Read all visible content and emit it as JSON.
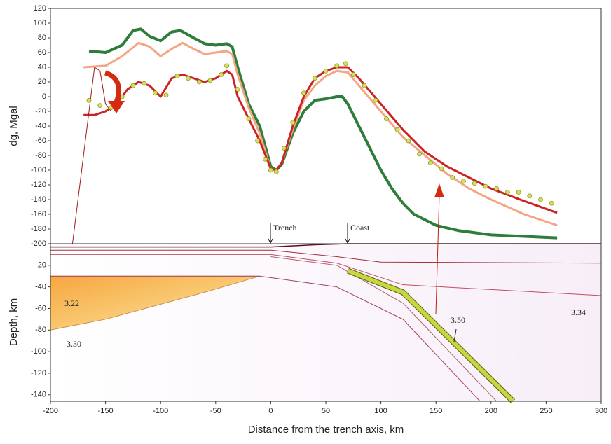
{
  "chart_data": [
    {
      "type": "line",
      "ylabel": "dg, Mgal",
      "xlim": [
        -200,
        300
      ],
      "ylim": [
        -200,
        120
      ],
      "yticks": [
        120,
        100,
        80,
        60,
        40,
        20,
        0,
        -20,
        -40,
        -60,
        -80,
        -100,
        -120,
        -140,
        -160,
        -180,
        -200
      ],
      "annotations": [
        {
          "text": "Trench"
        },
        {
          "text": "Coast"
        }
      ],
      "series": [
        {
          "color": "#2e7d3a",
          "width": 4,
          "x": [
            -165,
            -150,
            -135,
            -125,
            -118,
            -110,
            -100,
            -90,
            -82,
            -70,
            -60,
            -50,
            -40,
            -35,
            -30,
            -20,
            -10,
            0,
            5,
            10,
            20,
            30,
            40,
            50,
            60,
            65,
            70,
            80,
            90,
            100,
            110,
            120,
            130,
            150,
            170,
            200,
            230,
            260
          ],
          "values": [
            62,
            60,
            70,
            90,
            92,
            82,
            76,
            88,
            90,
            80,
            72,
            70,
            72,
            68,
            40,
            -10,
            -40,
            -95,
            -100,
            -92,
            -50,
            -20,
            -5,
            -3,
            0,
            0,
            -10,
            -40,
            -70,
            -100,
            -125,
            -145,
            -160,
            -175,
            -182,
            -188,
            -190,
            -192
          ]
        },
        {
          "color": "#f4a582",
          "width": 3,
          "x": [
            -170,
            -150,
            -135,
            -120,
            -110,
            -100,
            -90,
            -80,
            -70,
            -60,
            -50,
            -40,
            -35,
            -30,
            -20,
            -10,
            0,
            5,
            10,
            20,
            30,
            40,
            50,
            60,
            70,
            80,
            100,
            120,
            140,
            160,
            180,
            200,
            230,
            260
          ],
          "values": [
            40,
            42,
            55,
            73,
            68,
            55,
            65,
            73,
            65,
            58,
            60,
            62,
            58,
            30,
            -15,
            -50,
            -98,
            -100,
            -90,
            -45,
            -5,
            15,
            28,
            35,
            33,
            15,
            -20,
            -55,
            -80,
            -105,
            -125,
            -140,
            -160,
            -175
          ]
        },
        {
          "color": "#cc2222",
          "width": 3,
          "x": [
            -170,
            -160,
            -150,
            -140,
            -130,
            -120,
            -110,
            -100,
            -90,
            -80,
            -70,
            -60,
            -50,
            -40,
            -35,
            -30,
            -20,
            -10,
            0,
            5,
            10,
            20,
            30,
            40,
            50,
            60,
            70,
            80,
            100,
            120,
            140,
            160,
            180,
            200,
            230,
            260
          ],
          "values": [
            -25,
            -25,
            -20,
            -10,
            10,
            20,
            15,
            0,
            25,
            30,
            25,
            20,
            25,
            35,
            30,
            0,
            -30,
            -60,
            -98,
            -100,
            -90,
            -40,
            0,
            25,
            35,
            40,
            40,
            25,
            -10,
            -45,
            -75,
            -95,
            -110,
            -125,
            -142,
            -158
          ]
        },
        {
          "color": "#a01818",
          "width": 1,
          "x": [
            -180,
            -170,
            -160,
            -155,
            -150,
            -145
          ],
          "values": [
            -200,
            -80,
            40,
            35,
            -10,
            -20
          ]
        },
        {
          "color": "#d4e05a",
          "marker": true,
          "x": [
            -165,
            -155,
            -145,
            -135,
            -125,
            -115,
            -105,
            -95,
            -85,
            -75,
            -65,
            -55,
            -45,
            -40,
            -30,
            -20,
            -12,
            -5,
            0,
            5,
            12,
            20,
            30,
            40,
            50,
            60,
            68,
            75,
            85,
            95,
            105,
            115,
            125,
            135,
            145,
            155,
            165,
            175,
            185,
            195,
            205,
            215,
            225,
            235,
            245,
            255
          ],
          "values": [
            -5,
            -12,
            -15,
            0,
            15,
            18,
            5,
            2,
            28,
            25,
            20,
            22,
            30,
            42,
            10,
            -30,
            -60,
            -85,
            -100,
            -102,
            -70,
            -35,
            5,
            25,
            35,
            42,
            45,
            30,
            15,
            -5,
            -30,
            -45,
            -60,
            -78,
            -90,
            -98,
            -110,
            -115,
            -118,
            -122,
            -125,
            -130,
            -130,
            -135,
            -140,
            -145
          ]
        }
      ]
    },
    {
      "type": "line",
      "ylabel": "Depth, km",
      "xlabel": "Distance from the trench axis,  km",
      "xlim": [
        -200,
        300
      ],
      "ylim": [
        -146,
        0
      ],
      "xticks": [
        -200,
        -150,
        -100,
        -50,
        0,
        50,
        100,
        150,
        200,
        250,
        300
      ],
      "yticks": [
        -20,
        -40,
        -60,
        -80,
        -100,
        -120,
        -140
      ],
      "annotations": [
        {
          "text": "3.22"
        },
        {
          "text": "3.30"
        },
        {
          "text": "3.50"
        },
        {
          "text": "3.34"
        }
      ],
      "series": [
        {
          "color": "#5a1020",
          "width": 1.5,
          "x": [
            -200,
            0,
            40,
            70,
            300
          ],
          "values": [
            -3,
            -3,
            -1,
            0,
            0
          ]
        },
        {
          "color": "#a03040",
          "width": 1,
          "x": [
            -200,
            0,
            60,
            100,
            300
          ],
          "values": [
            -6,
            -6,
            -12,
            -17,
            -18
          ]
        },
        {
          "color": "#c05060",
          "width": 1,
          "x": [
            -200,
            0,
            60,
            120,
            300
          ],
          "values": [
            -10,
            -10,
            -18,
            -38,
            -48
          ]
        },
        {
          "color": "#f5b75a",
          "area": true,
          "x": [
            -200,
            -10,
            -60,
            -150,
            -200
          ],
          "values": [
            -30,
            -30,
            -45,
            -70,
            -80
          ]
        },
        {
          "color": "#b06070",
          "width": 1,
          "x": [
            0,
            60,
            120,
            205
          ],
          "values": [
            -12,
            -20,
            -55,
            -146
          ]
        },
        {
          "color": "#c8d640",
          "width": 6,
          "x": [
            70,
            120,
            220
          ],
          "values": [
            -25,
            -45,
            -146
          ]
        },
        {
          "color": "#a04060",
          "width": 1,
          "x": [
            -200,
            -10,
            60,
            120,
            190
          ],
          "values": [
            -30,
            -30,
            -40,
            -70,
            -146
          ]
        }
      ]
    }
  ]
}
